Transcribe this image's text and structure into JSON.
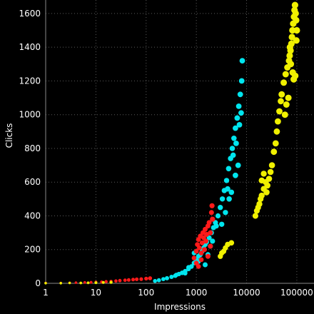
{
  "chart_data": {
    "type": "scatter",
    "title": "",
    "xlabel": "Impressions",
    "ylabel": "Clicks",
    "x_scale": "log",
    "xlim": [
      1,
      220000
    ],
    "ylim": [
      0,
      1680
    ],
    "x_ticks": [
      1,
      10,
      100,
      1000,
      10000,
      100000
    ],
    "x_tick_labels": [
      "1",
      "10",
      "100",
      "1000",
      "10000",
      "100000"
    ],
    "y_ticks": [
      0,
      200,
      400,
      600,
      800,
      1000,
      1200,
      1400,
      1600
    ],
    "y_tick_labels": [
      "0",
      "200",
      "400",
      "600",
      "800",
      "1000",
      "1200",
      "1400",
      "1600"
    ],
    "grid": true,
    "legend": "none",
    "series": [
      {
        "color": "#00e5ee",
        "points": [
          [
            150,
            14
          ],
          [
            180,
            18
          ],
          [
            220,
            25
          ],
          [
            260,
            30
          ],
          [
            320,
            38
          ],
          [
            380,
            45
          ],
          [
            450,
            55
          ],
          [
            520,
            62
          ],
          [
            600,
            72
          ],
          [
            700,
            85
          ],
          [
            800,
            100
          ],
          [
            900,
            120
          ],
          [
            1000,
            140
          ],
          [
            1100,
            160
          ],
          [
            1200,
            170
          ],
          [
            1300,
            190
          ],
          [
            1400,
            210
          ],
          [
            1500,
            230
          ],
          [
            1600,
            245
          ],
          [
            1800,
            270
          ],
          [
            2000,
            300
          ],
          [
            2200,
            330
          ],
          [
            2400,
            360
          ],
          [
            2700,
            400
          ],
          [
            3000,
            450
          ],
          [
            3300,
            500
          ],
          [
            3600,
            550
          ],
          [
            4000,
            610
          ],
          [
            4400,
            680
          ],
          [
            4800,
            740
          ],
          [
            5200,
            800
          ],
          [
            5600,
            860
          ],
          [
            6000,
            920
          ],
          [
            6500,
            980
          ],
          [
            7000,
            1050
          ],
          [
            7500,
            1120
          ],
          [
            8000,
            1200
          ],
          [
            8200,
            1320
          ],
          [
            6000,
            640
          ],
          [
            5000,
            540
          ],
          [
            4500,
            500
          ],
          [
            3800,
            420
          ],
          [
            2500,
            340
          ],
          [
            1900,
            220
          ],
          [
            900,
            180
          ],
          [
            1100,
            130
          ],
          [
            1500,
            110
          ],
          [
            700,
            95
          ],
          [
            600,
            60
          ],
          [
            400,
            50
          ],
          [
            1700,
            170
          ],
          [
            2100,
            250
          ],
          [
            6800,
            700
          ],
          [
            7200,
            940
          ],
          [
            3200,
            350
          ],
          [
            4200,
            560
          ],
          [
            5400,
            760
          ],
          [
            6200,
            830
          ],
          [
            7800,
            1010
          ]
        ]
      },
      {
        "color": "#ff1a1a",
        "points": [
          [
            1,
            2
          ],
          [
            2,
            2
          ],
          [
            3,
            3
          ],
          [
            4,
            4
          ],
          [
            6,
            5
          ],
          [
            8,
            6
          ],
          [
            10,
            7
          ],
          [
            13,
            8
          ],
          [
            16,
            10
          ],
          [
            20,
            12
          ],
          [
            25,
            14
          ],
          [
            30,
            16
          ],
          [
            38,
            18
          ],
          [
            45,
            20
          ],
          [
            55,
            22
          ],
          [
            65,
            24
          ],
          [
            80,
            25
          ],
          [
            100,
            28
          ],
          [
            120,
            30
          ],
          [
            900,
            150
          ],
          [
            1000,
            190
          ],
          [
            1050,
            230
          ],
          [
            1100,
            260
          ],
          [
            1150,
            210
          ],
          [
            1200,
            280
          ],
          [
            1250,
            180
          ],
          [
            1300,
            240
          ],
          [
            1350,
            300
          ],
          [
            1400,
            270
          ],
          [
            1450,
            200
          ],
          [
            1500,
            320
          ],
          [
            1550,
            250
          ],
          [
            1600,
            290
          ],
          [
            1700,
            340
          ],
          [
            1800,
            360
          ],
          [
            1900,
            300
          ],
          [
            2000,
            420
          ],
          [
            2050,
            460
          ],
          [
            2100,
            380
          ],
          [
            1000,
            120
          ],
          [
            1100,
            100
          ],
          [
            1250,
            140
          ],
          [
            1700,
            160
          ],
          [
            1900,
            220
          ]
        ]
      },
      {
        "color": "#f0f000",
        "points": [
          [
            1,
            1
          ],
          [
            2,
            1
          ],
          [
            3,
            2
          ],
          [
            5,
            2
          ],
          [
            7,
            3
          ],
          [
            10,
            4
          ],
          [
            14,
            5
          ],
          [
            20,
            6
          ],
          [
            3000,
            160
          ],
          [
            3200,
            180
          ],
          [
            3500,
            190
          ],
          [
            3800,
            210
          ],
          [
            4200,
            230
          ],
          [
            5000,
            240
          ],
          [
            15000,
            400
          ],
          [
            16000,
            430
          ],
          [
            17000,
            450
          ],
          [
            18000,
            470
          ],
          [
            19000,
            500
          ],
          [
            20000,
            520
          ],
          [
            22000,
            560
          ],
          [
            24000,
            600
          ],
          [
            26000,
            580
          ],
          [
            28000,
            620
          ],
          [
            30000,
            660
          ],
          [
            32000,
            700
          ],
          [
            35000,
            780
          ],
          [
            38000,
            830
          ],
          [
            40000,
            900
          ],
          [
            42000,
            960
          ],
          [
            45000,
            1020
          ],
          [
            48000,
            1080
          ],
          [
            50000,
            1120
          ],
          [
            55000,
            1190
          ],
          [
            60000,
            1240
          ],
          [
            65000,
            1280
          ],
          [
            70000,
            1320
          ],
          [
            72000,
            1350
          ],
          [
            75000,
            1380
          ],
          [
            78000,
            1420
          ],
          [
            80000,
            1460
          ],
          [
            82000,
            1500
          ],
          [
            85000,
            1540
          ],
          [
            88000,
            1580
          ],
          [
            90000,
            1620
          ],
          [
            92000,
            1650
          ],
          [
            95000,
            1600
          ],
          [
            97000,
            1560
          ],
          [
            100000,
            1500
          ],
          [
            98000,
            1440
          ],
          [
            93000,
            1230
          ],
          [
            87000,
            1210
          ],
          [
            83000,
            1250
          ],
          [
            76000,
            1300
          ],
          [
            73000,
            1400
          ],
          [
            68000,
            1100
          ],
          [
            62000,
            1060
          ],
          [
            58000,
            1000
          ],
          [
            20000,
            610
          ],
          [
            22000,
            650
          ],
          [
            25000,
            540
          ]
        ]
      }
    ]
  }
}
